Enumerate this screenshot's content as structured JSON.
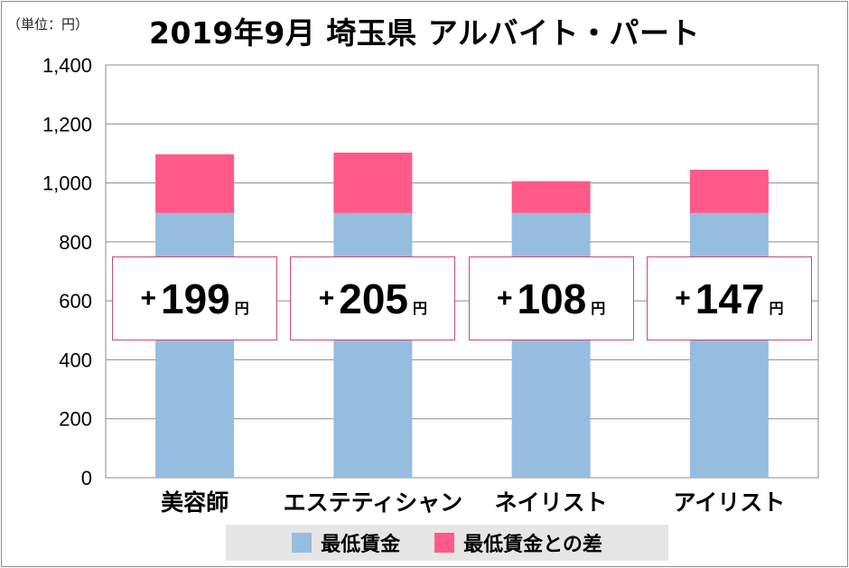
{
  "unit_label": "（単位：円）",
  "chart_data": {
    "type": "bar",
    "stacked": true,
    "title": "2019年9月 埼玉県 アルバイト・パート",
    "categories": [
      "美容師",
      "エステティシャン",
      "ネイリスト",
      "アイリスト"
    ],
    "series": [
      {
        "name": "最低賃金",
        "color": "#95bde0",
        "values": [
          898,
          898,
          898,
          898
        ]
      },
      {
        "name": "最低賃金との差",
        "color": "#ff5a8a",
        "values": [
          199,
          205,
          108,
          147
        ]
      }
    ],
    "ylim": [
      0,
      1400
    ],
    "yticks": [
      0,
      200,
      400,
      600,
      800,
      1000,
      1200,
      1400
    ],
    "ytick_labels": [
      "0",
      "200",
      "400",
      "600",
      "800",
      "1,000",
      "1,200",
      "1,400"
    ],
    "grid": true,
    "legend_position": "bottom",
    "annotations": [
      {
        "plus": "+",
        "value": "199",
        "unit": "円"
      },
      {
        "plus": "+",
        "value": "205",
        "unit": "円"
      },
      {
        "plus": "+",
        "value": "108",
        "unit": "円"
      },
      {
        "plus": "+",
        "value": "147",
        "unit": "円"
      }
    ]
  }
}
